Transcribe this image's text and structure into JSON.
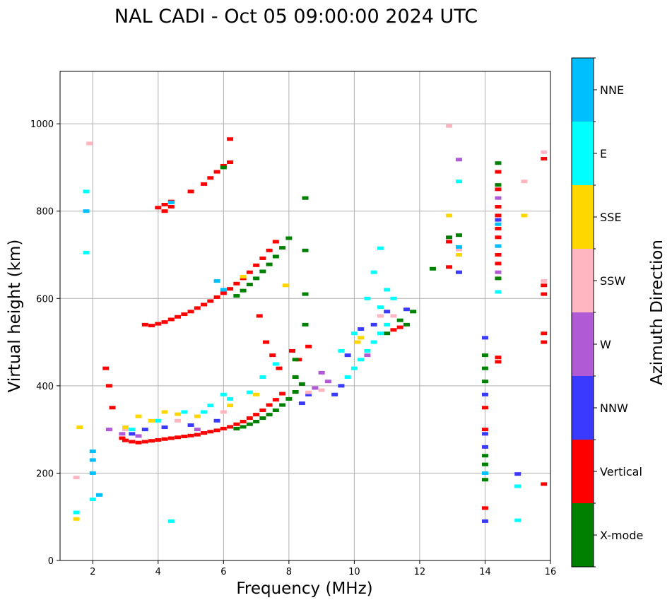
{
  "chart_data": {
    "type": "scatter",
    "title": "NAL CADI - Oct 05 09:00:00 2024 UTC",
    "xlabel": "Frequency (MHz)",
    "ylabel": "Virtual height (km)",
    "xlim": [
      1,
      16
    ],
    "ylim": [
      0,
      1120
    ],
    "xticks": [
      2,
      4,
      6,
      8,
      10,
      12,
      14,
      16
    ],
    "yticks": [
      0,
      200,
      400,
      600,
      800,
      1000
    ],
    "grid": true,
    "colorbar": {
      "label": "Azimuth Direction",
      "categories": [
        {
          "name": "X-mode",
          "color": "#008000"
        },
        {
          "name": "Vertical",
          "color": "#ff0000"
        },
        {
          "name": "NNW",
          "color": "#3a3aff"
        },
        {
          "name": "W",
          "color": "#b05ad6"
        },
        {
          "name": "SSW",
          "color": "#ffb6c1"
        },
        {
          "name": "SSE",
          "color": "#ffd700"
        },
        {
          "name": "E",
          "color": "#00ffff"
        },
        {
          "name": "NNE",
          "color": "#00bfff"
        }
      ]
    },
    "series": [
      {
        "name": "Vertical",
        "points": [
          [
            2.9,
            280
          ],
          [
            3.0,
            275
          ],
          [
            3.2,
            272
          ],
          [
            3.4,
            270
          ],
          [
            3.6,
            272
          ],
          [
            3.8,
            274
          ],
          [
            4.0,
            276
          ],
          [
            4.2,
            278
          ],
          [
            4.4,
            280
          ],
          [
            4.6,
            282
          ],
          [
            4.8,
            284
          ],
          [
            5.0,
            286
          ],
          [
            5.2,
            288
          ],
          [
            5.4,
            292
          ],
          [
            5.6,
            295
          ],
          [
            5.8,
            298
          ],
          [
            6.0,
            302
          ],
          [
            6.2,
            306
          ],
          [
            6.4,
            312
          ],
          [
            6.6,
            318
          ],
          [
            6.8,
            326
          ],
          [
            7.0,
            334
          ],
          [
            7.2,
            344
          ],
          [
            7.4,
            356
          ],
          [
            7.6,
            368
          ],
          [
            7.8,
            382
          ],
          [
            3.6,
            540
          ],
          [
            3.8,
            538
          ],
          [
            4.0,
            542
          ],
          [
            4.2,
            546
          ],
          [
            4.4,
            552
          ],
          [
            4.6,
            558
          ],
          [
            4.8,
            564
          ],
          [
            5.0,
            570
          ],
          [
            5.2,
            578
          ],
          [
            5.4,
            586
          ],
          [
            5.6,
            594
          ],
          [
            5.8,
            603
          ],
          [
            6.0,
            612
          ],
          [
            6.2,
            622
          ],
          [
            6.4,
            634
          ],
          [
            6.6,
            646
          ],
          [
            6.8,
            660
          ],
          [
            7.0,
            676
          ],
          [
            7.2,
            692
          ],
          [
            7.4,
            710
          ],
          [
            7.6,
            730
          ],
          [
            4.0,
            808
          ],
          [
            4.2,
            815
          ],
          [
            4.4,
            822
          ],
          [
            5.0,
            845
          ],
          [
            5.4,
            862
          ],
          [
            5.6,
            876
          ],
          [
            5.8,
            890
          ],
          [
            6.0,
            904
          ],
          [
            6.2,
            912
          ],
          [
            2.4,
            440
          ],
          [
            2.5,
            400
          ],
          [
            2.6,
            350
          ],
          [
            7.1,
            560
          ],
          [
            7.3,
            500
          ],
          [
            7.5,
            470
          ],
          [
            7.7,
            440
          ],
          [
            8.1,
            480
          ],
          [
            8.3,
            460
          ],
          [
            8.6,
            490
          ],
          [
            11.2,
            528
          ],
          [
            11.4,
            534
          ],
          [
            14.4,
            455
          ],
          [
            14.4,
            465
          ],
          [
            14.4,
            680
          ],
          [
            14.4,
            700
          ],
          [
            14.4,
            740
          ],
          [
            14.4,
            760
          ],
          [
            14.4,
            790
          ],
          [
            14.4,
            810
          ],
          [
            14.4,
            850
          ],
          [
            14.4,
            890
          ],
          [
            14.0,
            350
          ],
          [
            14.0,
            300
          ],
          [
            14.0,
            120
          ],
          [
            15.8,
            175
          ],
          [
            15.8,
            500
          ],
          [
            15.8,
            520
          ],
          [
            15.8,
            610
          ],
          [
            15.8,
            630
          ],
          [
            15.8,
            920
          ],
          [
            12.9,
            730
          ],
          [
            12.9,
            672
          ],
          [
            4.2,
            800
          ],
          [
            4.4,
            810
          ],
          [
            6.2,
            965
          ]
        ]
      },
      {
        "name": "X-mode",
        "points": [
          [
            6.4,
            302
          ],
          [
            6.6,
            306
          ],
          [
            6.8,
            312
          ],
          [
            7.0,
            318
          ],
          [
            7.2,
            326
          ],
          [
            7.4,
            334
          ],
          [
            7.6,
            344
          ],
          [
            7.8,
            356
          ],
          [
            8.0,
            370
          ],
          [
            8.2,
            386
          ],
          [
            8.4,
            404
          ],
          [
            6.4,
            606
          ],
          [
            6.6,
            618
          ],
          [
            6.8,
            632
          ],
          [
            7.0,
            646
          ],
          [
            7.2,
            662
          ],
          [
            7.4,
            678
          ],
          [
            7.6,
            696
          ],
          [
            7.8,
            716
          ],
          [
            8.0,
            738
          ],
          [
            8.5,
            830
          ],
          [
            8.5,
            710
          ],
          [
            8.5,
            610
          ],
          [
            8.5,
            540
          ],
          [
            8.2,
            460
          ],
          [
            8.2,
            420
          ],
          [
            11.4,
            550
          ],
          [
            11.6,
            540
          ],
          [
            11.0,
            520
          ],
          [
            11.8,
            570
          ],
          [
            12.4,
            668
          ],
          [
            12.9,
            740
          ],
          [
            13.2,
            745
          ],
          [
            14.0,
            410
          ],
          [
            14.0,
            440
          ],
          [
            14.0,
            470
          ],
          [
            14.0,
            220
          ],
          [
            14.0,
            240
          ],
          [
            14.0,
            185
          ],
          [
            14.4,
            646
          ],
          [
            14.4,
            910
          ],
          [
            14.4,
            860
          ],
          [
            6.0,
            900
          ]
        ]
      },
      {
        "name": "NNW",
        "points": [
          [
            3.2,
            290
          ],
          [
            3.6,
            300
          ],
          [
            4.2,
            305
          ],
          [
            5.0,
            310
          ],
          [
            5.8,
            320
          ],
          [
            8.4,
            360
          ],
          [
            8.6,
            380
          ],
          [
            9.4,
            380
          ],
          [
            9.6,
            400
          ],
          [
            9.8,
            470
          ],
          [
            10.2,
            530
          ],
          [
            10.6,
            540
          ],
          [
            11.0,
            570
          ],
          [
            11.6,
            575
          ],
          [
            14.0,
            90
          ],
          [
            14.0,
            260
          ],
          [
            14.0,
            290
          ],
          [
            14.0,
            380
          ],
          [
            14.0,
            510
          ],
          [
            15.0,
            198
          ],
          [
            14.4,
            780
          ],
          [
            13.2,
            660
          ]
        ]
      },
      {
        "name": "W",
        "points": [
          [
            2.9,
            290
          ],
          [
            3.4,
            285
          ],
          [
            5.2,
            300
          ],
          [
            8.8,
            395
          ],
          [
            9.0,
            430
          ],
          [
            9.2,
            410
          ],
          [
            10.4,
            470
          ],
          [
            14.4,
            830
          ],
          [
            14.4,
            660
          ],
          [
            15.0,
            170
          ],
          [
            13.2,
            918
          ],
          [
            2.5,
            300
          ]
        ]
      },
      {
        "name": "SSW",
        "points": [
          [
            1.5,
            190
          ],
          [
            1.9,
            955
          ],
          [
            3.0,
            300
          ],
          [
            4.6,
            320
          ],
          [
            6.0,
            340
          ],
          [
            8.6,
            385
          ],
          [
            9.0,
            390
          ],
          [
            10.8,
            560
          ],
          [
            11.2,
            560
          ],
          [
            12.9,
            995
          ],
          [
            15.2,
            868
          ],
          [
            14.4,
            720
          ],
          [
            15.8,
            640
          ],
          [
            15.8,
            935
          ],
          [
            13.2,
            712
          ]
        ]
      },
      {
        "name": "SSE",
        "points": [
          [
            1.5,
            95
          ],
          [
            1.6,
            305
          ],
          [
            3.0,
            305
          ],
          [
            3.4,
            330
          ],
          [
            3.8,
            320
          ],
          [
            4.2,
            340
          ],
          [
            4.6,
            335
          ],
          [
            5.2,
            330
          ],
          [
            6.2,
            355
          ],
          [
            7.0,
            380
          ],
          [
            10.1,
            500
          ],
          [
            10.2,
            510
          ],
          [
            12.9,
            790
          ],
          [
            15.2,
            790
          ],
          [
            6.6,
            650
          ],
          [
            7.9,
            630
          ],
          [
            13.2,
            700
          ]
        ]
      },
      {
        "name": "E",
        "points": [
          [
            1.5,
            110
          ],
          [
            2.0,
            140
          ],
          [
            3.2,
            300
          ],
          [
            4.0,
            320
          ],
          [
            4.8,
            340
          ],
          [
            5.6,
            355
          ],
          [
            6.2,
            370
          ],
          [
            6.8,
            385
          ],
          [
            7.2,
            420
          ],
          [
            7.6,
            450
          ],
          [
            9.8,
            420
          ],
          [
            10.0,
            440
          ],
          [
            10.2,
            460
          ],
          [
            10.4,
            480
          ],
          [
            10.6,
            500
          ],
          [
            10.8,
            520
          ],
          [
            11.0,
            540
          ],
          [
            10.8,
            580
          ],
          [
            10.4,
            600
          ],
          [
            11.0,
            620
          ],
          [
            11.2,
            600
          ],
          [
            10.0,
            520
          ],
          [
            10.6,
            660
          ],
          [
            10.8,
            715
          ],
          [
            9.6,
            480
          ],
          [
            6.0,
            380
          ],
          [
            5.4,
            340
          ],
          [
            4.4,
            90
          ],
          [
            13.2,
            868
          ],
          [
            15.0,
            92
          ],
          [
            15.0,
            170
          ],
          [
            14.4,
            615
          ],
          [
            1.8,
            845
          ],
          [
            1.8,
            705
          ]
        ]
      },
      {
        "name": "NNE",
        "points": [
          [
            2.0,
            200
          ],
          [
            2.0,
            230
          ],
          [
            2.0,
            250
          ],
          [
            1.8,
            800
          ],
          [
            2.2,
            150
          ],
          [
            4.4,
            820
          ],
          [
            5.8,
            640
          ],
          [
            6.0,
            620
          ],
          [
            14.4,
            770
          ],
          [
            14.4,
            720
          ],
          [
            14.0,
            200
          ],
          [
            13.2,
            718
          ]
        ]
      }
    ]
  }
}
